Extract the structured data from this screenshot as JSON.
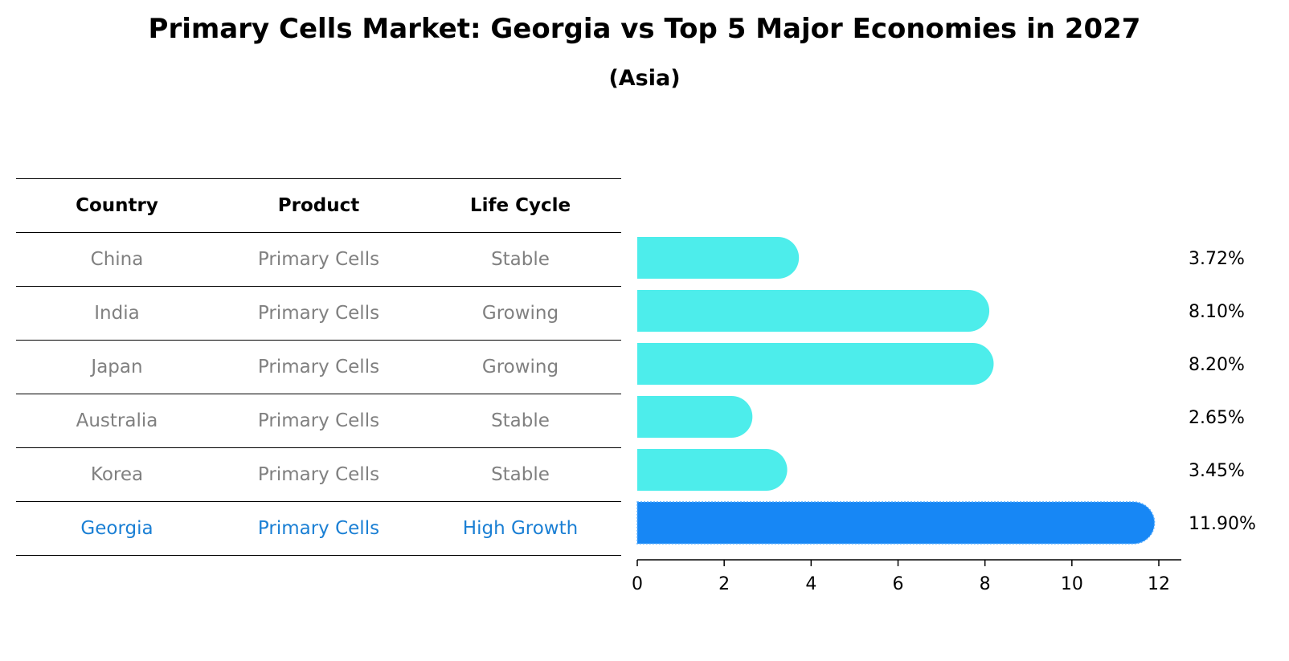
{
  "title": "Primary Cells Market: Georgia vs Top 5 Major Economies in 2027",
  "subtitle": "(Asia)",
  "table": {
    "headers": [
      "Country",
      "Product",
      "Life Cycle"
    ],
    "rows": [
      {
        "country": "China",
        "product": "Primary Cells",
        "life_cycle": "Stable"
      },
      {
        "country": "India",
        "product": "Primary Cells",
        "life_cycle": "Growing"
      },
      {
        "country": "Japan",
        "product": "Primary Cells",
        "life_cycle": "Growing"
      },
      {
        "country": "Australia",
        "product": "Primary Cells",
        "life_cycle": "Stable"
      },
      {
        "country": "Korea",
        "product": "Primary Cells",
        "life_cycle": "Stable"
      },
      {
        "country": "Georgia",
        "product": "Primary Cells",
        "life_cycle": "High Growth"
      }
    ]
  },
  "colors": {
    "normal_bar": "#4dedeb",
    "highlight_bar": "#1787f5",
    "normal_text": "#808080",
    "highlight_text": "#1a7fd4"
  },
  "chart_data": {
    "type": "bar",
    "orientation": "horizontal",
    "title": "Primary Cells Market: Georgia vs Top 5 Major Economies in 2027",
    "subtitle": "(Asia)",
    "categories": [
      "China",
      "India",
      "Japan",
      "Australia",
      "Korea",
      "Georgia"
    ],
    "values": [
      3.72,
      8.1,
      8.2,
      2.65,
      3.45,
      11.9
    ],
    "labels": [
      "3.72%",
      "8.10%",
      "8.20%",
      "2.65%",
      "3.45%",
      "11.90%"
    ],
    "highlight": "Georgia",
    "xlim": [
      0,
      12.5
    ],
    "xticks": [
      0,
      2,
      4,
      6,
      8,
      10,
      12
    ],
    "xlabel": "",
    "ylabel": "",
    "grid": false
  }
}
